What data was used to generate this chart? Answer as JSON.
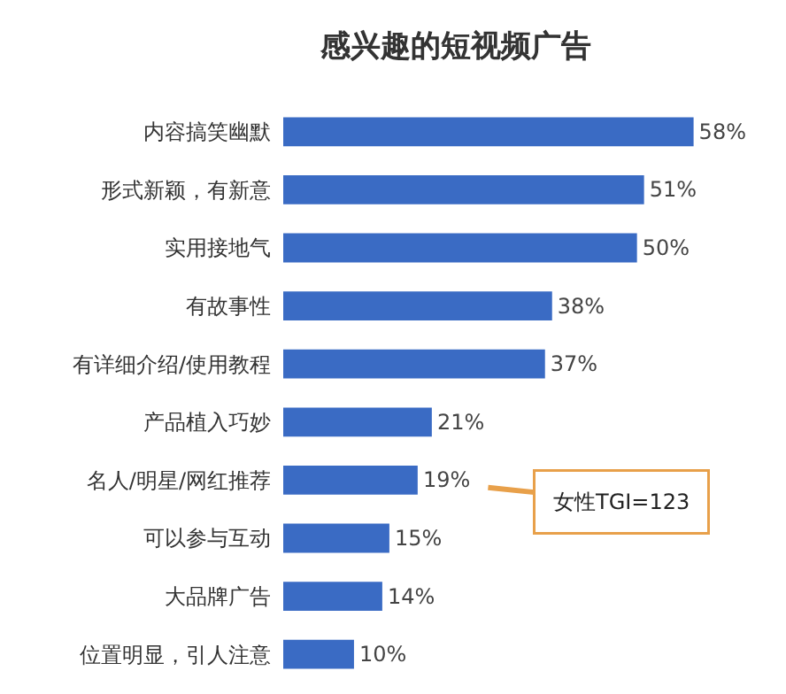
{
  "chart_data": {
    "type": "bar",
    "orientation": "horizontal",
    "title": "感兴趣的短视频广告",
    "categories": [
      "内容搞笑幽默",
      "形式新颖，有新意",
      "实用接地气",
      "有故事性",
      "有详细介绍/使用教程",
      "产品植入巧妙",
      "名人/明星/网红推荐",
      "可以参与互动",
      "大品牌广告",
      "位置明显，引人注意"
    ],
    "values": [
      58,
      51,
      50,
      38,
      37,
      21,
      19,
      15,
      14,
      10
    ],
    "value_labels": [
      "58%",
      "51%",
      "50%",
      "38%",
      "37%",
      "21%",
      "19%",
      "15%",
      "14%",
      "10%"
    ],
    "color": "#3a6bc4",
    "tick_labels": "y",
    "grid": false,
    "legend": false,
    "annotations": [
      {
        "text": "女性TGI=123",
        "x": 19,
        "y": "名人/明星/网红推荐"
      }
    ]
  }
}
